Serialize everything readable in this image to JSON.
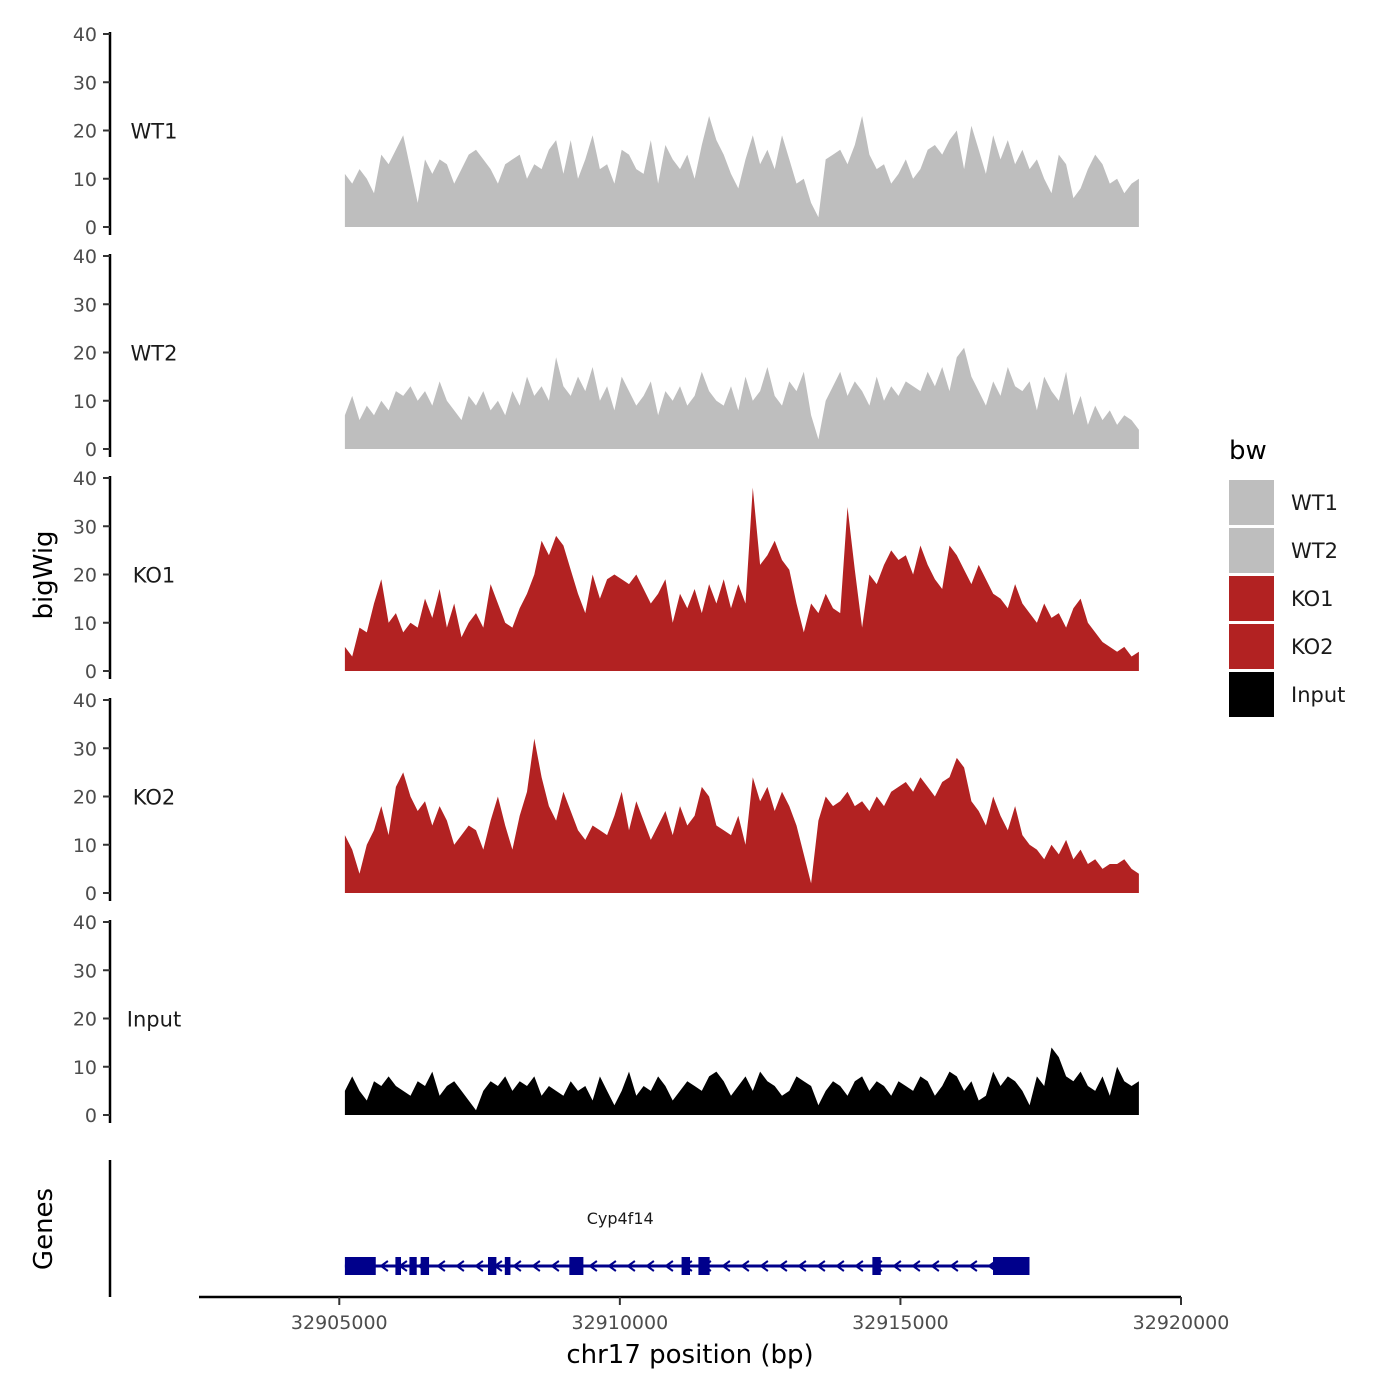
{
  "chart_data": {
    "type": "area",
    "title": "",
    "xlabel": "chr17 position (bp)",
    "ylabel": "bigWig",
    "gene_panel_label": "Genes",
    "xlim": [
      32902500,
      32920000
    ],
    "ylim": [
      0,
      40
    ],
    "x_ticks": [
      32905000,
      32910000,
      32915000,
      32920000
    ],
    "x_tick_labels": [
      "32905000",
      "32910000",
      "32915000",
      "32920000"
    ],
    "y_ticks": [
      0,
      10,
      20,
      30,
      40
    ],
    "y_tick_labels": [
      "0",
      "10",
      "20",
      "30",
      "40"
    ],
    "signal_range": [
      32905100,
      32919250
    ],
    "legend": {
      "title": "bw",
      "position": "right",
      "entries": [
        {
          "name": "WT1",
          "color": "#bebebe"
        },
        {
          "name": "WT2",
          "color": "#bebebe"
        },
        {
          "name": "KO1",
          "color": "#b22222"
        },
        {
          "name": "KO2",
          "color": "#b22222"
        },
        {
          "name": "Input",
          "color": "#000000"
        }
      ]
    },
    "series": [
      {
        "name": "WT1",
        "color": "#bebebe",
        "values": [
          11,
          9,
          12,
          10,
          7,
          15,
          13,
          16,
          19,
          12,
          5,
          14,
          11,
          14,
          13,
          9,
          12,
          15,
          16,
          14,
          12,
          9,
          13,
          14,
          15,
          10,
          13,
          12,
          16,
          18,
          11,
          18,
          10,
          14,
          19,
          12,
          13,
          9,
          16,
          15,
          12,
          11,
          18,
          9,
          17,
          14,
          12,
          15,
          10,
          17,
          23,
          18,
          15,
          11,
          8,
          14,
          19,
          13,
          16,
          12,
          19,
          14,
          9,
          10,
          5,
          2,
          14,
          15,
          16,
          13,
          17,
          23,
          15,
          12,
          13,
          9,
          11,
          14,
          10,
          12,
          16,
          17,
          15,
          18,
          20,
          12,
          21,
          16,
          11,
          19,
          14,
          18,
          13,
          16,
          12,
          14,
          10,
          7,
          15,
          13,
          6,
          8,
          12,
          15,
          13,
          9,
          10,
          7,
          9,
          10
        ]
      },
      {
        "name": "WT2",
        "color": "#bebebe",
        "values": [
          7,
          11,
          6,
          9,
          7,
          10,
          8,
          12,
          11,
          13,
          10,
          12,
          9,
          14,
          10,
          8,
          6,
          11,
          9,
          12,
          8,
          10,
          7,
          12,
          9,
          15,
          11,
          13,
          10,
          19,
          13,
          11,
          15,
          12,
          17,
          10,
          13,
          8,
          15,
          12,
          9,
          11,
          14,
          7,
          12,
          10,
          13,
          9,
          11,
          16,
          12,
          10,
          9,
          13,
          8,
          15,
          10,
          12,
          17,
          11,
          9,
          14,
          12,
          16,
          7,
          2,
          10,
          13,
          16,
          11,
          14,
          12,
          9,
          15,
          10,
          13,
          11,
          14,
          13,
          12,
          16,
          13,
          17,
          12,
          19,
          21,
          15,
          12,
          9,
          14,
          11,
          17,
          13,
          12,
          14,
          8,
          15,
          12,
          10,
          16,
          7,
          11,
          5,
          9,
          6,
          8,
          5,
          7,
          6,
          4
        ]
      },
      {
        "name": "KO1",
        "color": "#b22222",
        "values": [
          5,
          3,
          9,
          8,
          14,
          19,
          10,
          12,
          8,
          10,
          9,
          15,
          11,
          17,
          9,
          14,
          7,
          10,
          12,
          9,
          18,
          14,
          10,
          9,
          13,
          16,
          20,
          27,
          24,
          28,
          26,
          21,
          16,
          12,
          20,
          15,
          19,
          20,
          19,
          18,
          20,
          17,
          14,
          16,
          19,
          10,
          16,
          13,
          17,
          12,
          18,
          14,
          19,
          13,
          18,
          14,
          38,
          22,
          24,
          27,
          23,
          21,
          14,
          8,
          14,
          12,
          16,
          13,
          12,
          34,
          21,
          9,
          20,
          18,
          22,
          25,
          23,
          24,
          20,
          26,
          22,
          19,
          17,
          26,
          24,
          21,
          18,
          22,
          19,
          16,
          15,
          13,
          18,
          14,
          12,
          10,
          14,
          11,
          12,
          9,
          13,
          15,
          10,
          8,
          6,
          5,
          4,
          5,
          3,
          4
        ]
      },
      {
        "name": "KO2",
        "color": "#b22222",
        "values": [
          12,
          9,
          4,
          10,
          13,
          18,
          12,
          22,
          25,
          20,
          17,
          19,
          14,
          18,
          15,
          10,
          12,
          14,
          13,
          9,
          15,
          20,
          14,
          9,
          16,
          21,
          32,
          24,
          18,
          15,
          21,
          17,
          13,
          11,
          14,
          13,
          12,
          16,
          21,
          13,
          19,
          15,
          11,
          14,
          17,
          12,
          18,
          14,
          16,
          22,
          20,
          14,
          13,
          12,
          16,
          10,
          24,
          19,
          22,
          17,
          21,
          18,
          14,
          8,
          2,
          15,
          20,
          18,
          19,
          21,
          18,
          19,
          17,
          20,
          18,
          21,
          22,
          23,
          21,
          24,
          22,
          20,
          23,
          24,
          28,
          26,
          19,
          17,
          14,
          20,
          16,
          13,
          18,
          12,
          10,
          9,
          7,
          10,
          8,
          11,
          7,
          9,
          6,
          7,
          5,
          6,
          6,
          7,
          5,
          4
        ]
      },
      {
        "name": "Input",
        "color": "#000000",
        "values": [
          5,
          8,
          5,
          3,
          7,
          6,
          8,
          6,
          5,
          4,
          7,
          6,
          9,
          4,
          6,
          7,
          5,
          3,
          1,
          5,
          7,
          6,
          8,
          5,
          7,
          6,
          8,
          4,
          6,
          5,
          4,
          7,
          5,
          6,
          3,
          8,
          5,
          2,
          5,
          9,
          4,
          6,
          5,
          8,
          6,
          3,
          5,
          7,
          6,
          5,
          8,
          9,
          7,
          4,
          6,
          8,
          5,
          9,
          7,
          6,
          4,
          5,
          8,
          7,
          6,
          2,
          5,
          7,
          6,
          4,
          7,
          8,
          5,
          7,
          6,
          4,
          7,
          6,
          5,
          8,
          7,
          4,
          6,
          9,
          8,
          5,
          7,
          3,
          4,
          9,
          6,
          8,
          7,
          5,
          2,
          8,
          6,
          14,
          12,
          8,
          7,
          9,
          6,
          5,
          8,
          4,
          10,
          7,
          6,
          7
        ]
      }
    ],
    "genes": [
      {
        "name": "Cyp4f14",
        "strand": "-",
        "start": 32905100,
        "end": 32917300,
        "exons": [
          [
            32905100,
            32905650
          ],
          [
            32906000,
            32906100
          ],
          [
            32906250,
            32906380
          ],
          [
            32906450,
            32906600
          ],
          [
            32907650,
            32907800
          ],
          [
            32907950,
            32908050
          ],
          [
            32909100,
            32909350
          ],
          [
            32911100,
            32911250
          ],
          [
            32911400,
            32911600
          ],
          [
            32914500,
            32914650
          ],
          [
            32916650,
            32917300
          ]
        ]
      }
    ]
  }
}
